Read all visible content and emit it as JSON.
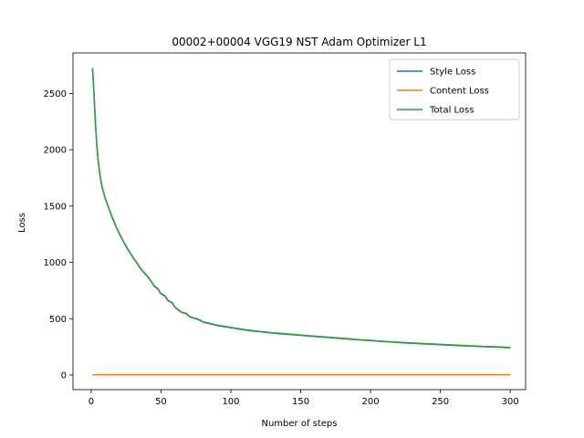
{
  "chart_data": {
    "type": "line",
    "title": "00002+00004 VGG19 NST Adam Optimizer L1",
    "xlabel": "Number of steps",
    "ylabel": "Loss",
    "xlim": [
      -13,
      311
    ],
    "ylim": [
      -130,
      2860
    ],
    "xticks": [
      0,
      50,
      100,
      150,
      200,
      250,
      300
    ],
    "yticks": [
      0,
      500,
      1000,
      1500,
      2000,
      2500
    ],
    "grid": false,
    "legend_position": "upper right",
    "x": [
      1,
      2,
      3,
      4,
      5,
      6,
      7,
      8,
      10,
      12,
      15,
      18,
      20,
      22,
      25,
      28,
      30,
      33,
      35,
      37,
      40,
      43,
      45,
      48,
      50,
      53,
      55,
      58,
      60,
      63,
      65,
      68,
      70,
      73,
      75,
      78,
      80,
      85,
      90,
      95,
      100,
      105,
      110,
      115,
      120,
      125,
      130,
      135,
      140,
      145,
      150,
      155,
      160,
      165,
      170,
      175,
      180,
      185,
      190,
      195,
      200,
      205,
      210,
      215,
      220,
      225,
      230,
      235,
      240,
      245,
      250,
      255,
      260,
      265,
      270,
      275,
      280,
      285,
      290,
      295,
      300
    ],
    "series": [
      {
        "name": "Style Loss",
        "color": "#1f77b4",
        "values": [
          2725,
          2500,
          2250,
          2050,
          1900,
          1800,
          1720,
          1660,
          1570,
          1500,
          1400,
          1310,
          1260,
          1210,
          1140,
          1080,
          1040,
          990,
          950,
          920,
          880,
          830,
          790,
          760,
          720,
          700,
          660,
          640,
          600,
          570,
          555,
          545,
          520,
          505,
          500,
          485,
          470,
          455,
          440,
          430,
          420,
          410,
          400,
          392,
          385,
          378,
          372,
          367,
          362,
          357,
          352,
          347,
          342,
          337,
          333,
          328,
          323,
          318,
          313,
          309,
          305,
          300,
          296,
          292,
          288,
          284,
          281,
          278,
          275,
          272,
          269,
          266,
          263,
          260,
          257,
          255,
          252,
          250,
          248,
          245,
          242
        ]
      },
      {
        "name": "Content Loss",
        "color": "#ff7f0e",
        "values": [
          1,
          2,
          2,
          3,
          3,
          3,
          3,
          3,
          3,
          3,
          3,
          3,
          3,
          3,
          3,
          3,
          3,
          3,
          3,
          3,
          3,
          3,
          3,
          3,
          3,
          3,
          3,
          3,
          3,
          3,
          3,
          3,
          3,
          3,
          3,
          3,
          3,
          3,
          3,
          3,
          3,
          3,
          3,
          3,
          3,
          3,
          3,
          3,
          3,
          3,
          3,
          3,
          3,
          3,
          3,
          3,
          3,
          3,
          3,
          3,
          3,
          3,
          3,
          3,
          3,
          3,
          3,
          3,
          3,
          3,
          3,
          3,
          3,
          3,
          3,
          3,
          3,
          3,
          3,
          3,
          3
        ]
      },
      {
        "name": "Total Loss",
        "color": "#2ca02c",
        "values": [
          2726,
          2502,
          2252,
          2053,
          1903,
          1803,
          1723,
          1663,
          1573,
          1503,
          1403,
          1313,
          1263,
          1213,
          1143,
          1083,
          1043,
          993,
          953,
          923,
          883,
          833,
          793,
          763,
          723,
          703,
          663,
          643,
          603,
          573,
          558,
          548,
          523,
          508,
          503,
          488,
          473,
          458,
          443,
          433,
          423,
          413,
          403,
          395,
          388,
          381,
          375,
          370,
          365,
          360,
          355,
          350,
          345,
          340,
          336,
          331,
          326,
          321,
          316,
          312,
          308,
          303,
          299,
          295,
          291,
          287,
          284,
          281,
          278,
          275,
          272,
          269,
          266,
          263,
          260,
          258,
          255,
          253,
          251,
          248,
          245
        ]
      }
    ]
  }
}
